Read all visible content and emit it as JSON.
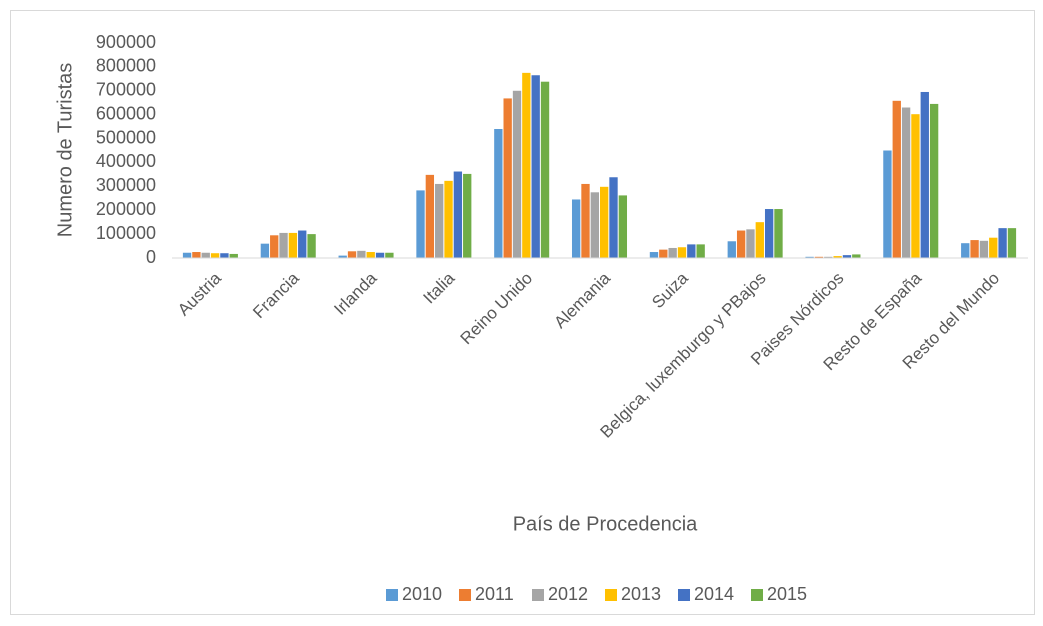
{
  "chart_data": {
    "type": "bar",
    "y_label": "Numero de Turistas",
    "x_label": "País de Procedencia",
    "categories": [
      "Austria",
      "Francia",
      "Irlanda",
      "Italia",
      "Reino Unido",
      "Alemania",
      "Suiza",
      "Belgica, luxemburgo y PBajos",
      "Paises Nórdicos",
      "Resto de España",
      "Resto del Mundo"
    ],
    "series": [
      {
        "name": "2010",
        "color": "#5b9bd5",
        "values": [
          22000,
          60000,
          10000,
          283000,
          540000,
          245000,
          25000,
          70000,
          5000,
          450000,
          62000
        ]
      },
      {
        "name": "2011",
        "color": "#ed7d31",
        "values": [
          25000,
          95000,
          28000,
          348000,
          668000,
          310000,
          35000,
          115000,
          5000,
          658000,
          75000
        ]
      },
      {
        "name": "2012",
        "color": "#a5a5a5",
        "values": [
          22000,
          105000,
          30000,
          310000,
          700000,
          275000,
          42000,
          120000,
          5000,
          630000,
          72000
        ]
      },
      {
        "name": "2013",
        "color": "#ffc000",
        "values": [
          20000,
          105000,
          25000,
          323000,
          775000,
          298000,
          45000,
          150000,
          8000,
          602000,
          85000
        ]
      },
      {
        "name": "2014",
        "color": "#4472c4",
        "values": [
          20000,
          115000,
          22000,
          362000,
          765000,
          338000,
          57000,
          205000,
          12000,
          695000,
          125000
        ]
      },
      {
        "name": "2015",
        "color": "#70ad47",
        "values": [
          17000,
          100000,
          22000,
          352000,
          738000,
          262000,
          57000,
          205000,
          15000,
          645000,
          125000
        ]
      }
    ],
    "ylim": [
      0,
      900000
    ],
    "yticks": [
      0,
      100000,
      200000,
      300000,
      400000,
      500000,
      600000,
      700000,
      800000,
      900000
    ],
    "grid": false,
    "legend": "bottom"
  }
}
